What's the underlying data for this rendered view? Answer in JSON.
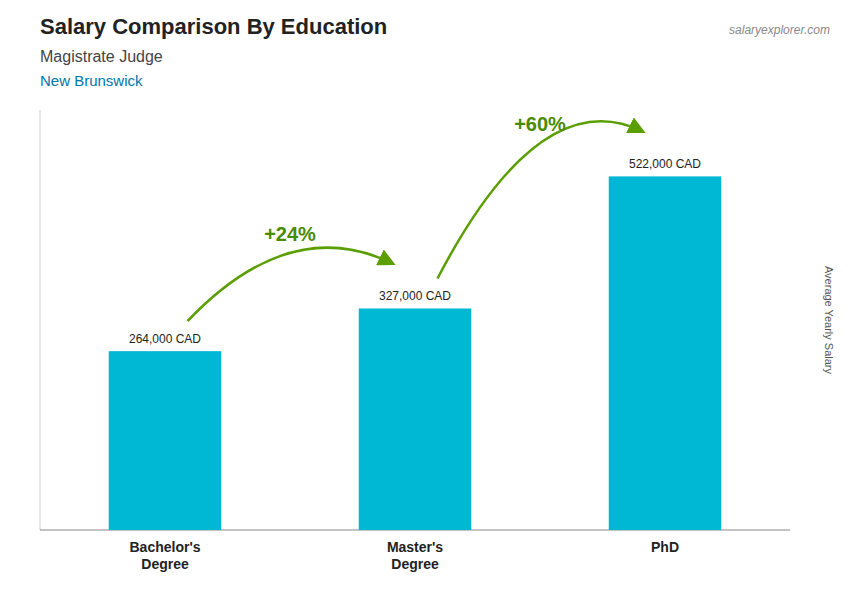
{
  "chart_data": {
    "type": "bar",
    "title": "Salary Comparison By Education",
    "subtitle": "Magistrate Judge",
    "annotations": [
      "New Brunswick",
      "salaryexplorer.com",
      "+24%",
      "+60%"
    ],
    "ylabel": "Average Yearly Salary",
    "categories": [
      "Bachelor's\nDegree",
      "Master's\nDegree",
      "PhD"
    ],
    "values": [
      264000,
      327000,
      522000
    ],
    "value_labels": [
      "264,000 CAD",
      "327,000 CAD",
      "522,000 CAD"
    ],
    "data_labels": true,
    "color": "#00b8d4",
    "ylim": [
      0,
      620000
    ],
    "tick_labels": "x"
  }
}
